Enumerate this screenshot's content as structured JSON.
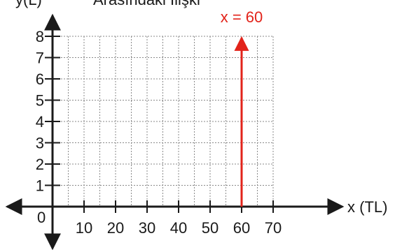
{
  "chart_data": {
    "type": "line",
    "title": "Arasındaki İlişki",
    "xlabel": "x (TL)",
    "ylabel": "y(L)",
    "origin_label": "0",
    "xlim": [
      0,
      70
    ],
    "ylim": [
      0,
      8
    ],
    "x_ticks": [
      10,
      20,
      30,
      40,
      50,
      60,
      70
    ],
    "x_tick_labels": [
      "10",
      "20",
      "30",
      "40",
      "50",
      "60",
      "70"
    ],
    "y_ticks": [
      1,
      2,
      3,
      4,
      5,
      6,
      7,
      8
    ],
    "y_tick_labels": [
      "1",
      "2",
      "3",
      "4",
      "5",
      "6",
      "7",
      "8"
    ],
    "grid": true,
    "series": [
      {
        "name": "x = 60",
        "type": "vertical-line",
        "x": [
          60,
          60
        ],
        "y": [
          0,
          8
        ],
        "color": "#e2231a",
        "arrow": "top"
      }
    ],
    "colors": {
      "axis": "#1a1a1a",
      "grid": "#8a8a8a",
      "highlight": "#e2231a"
    }
  }
}
